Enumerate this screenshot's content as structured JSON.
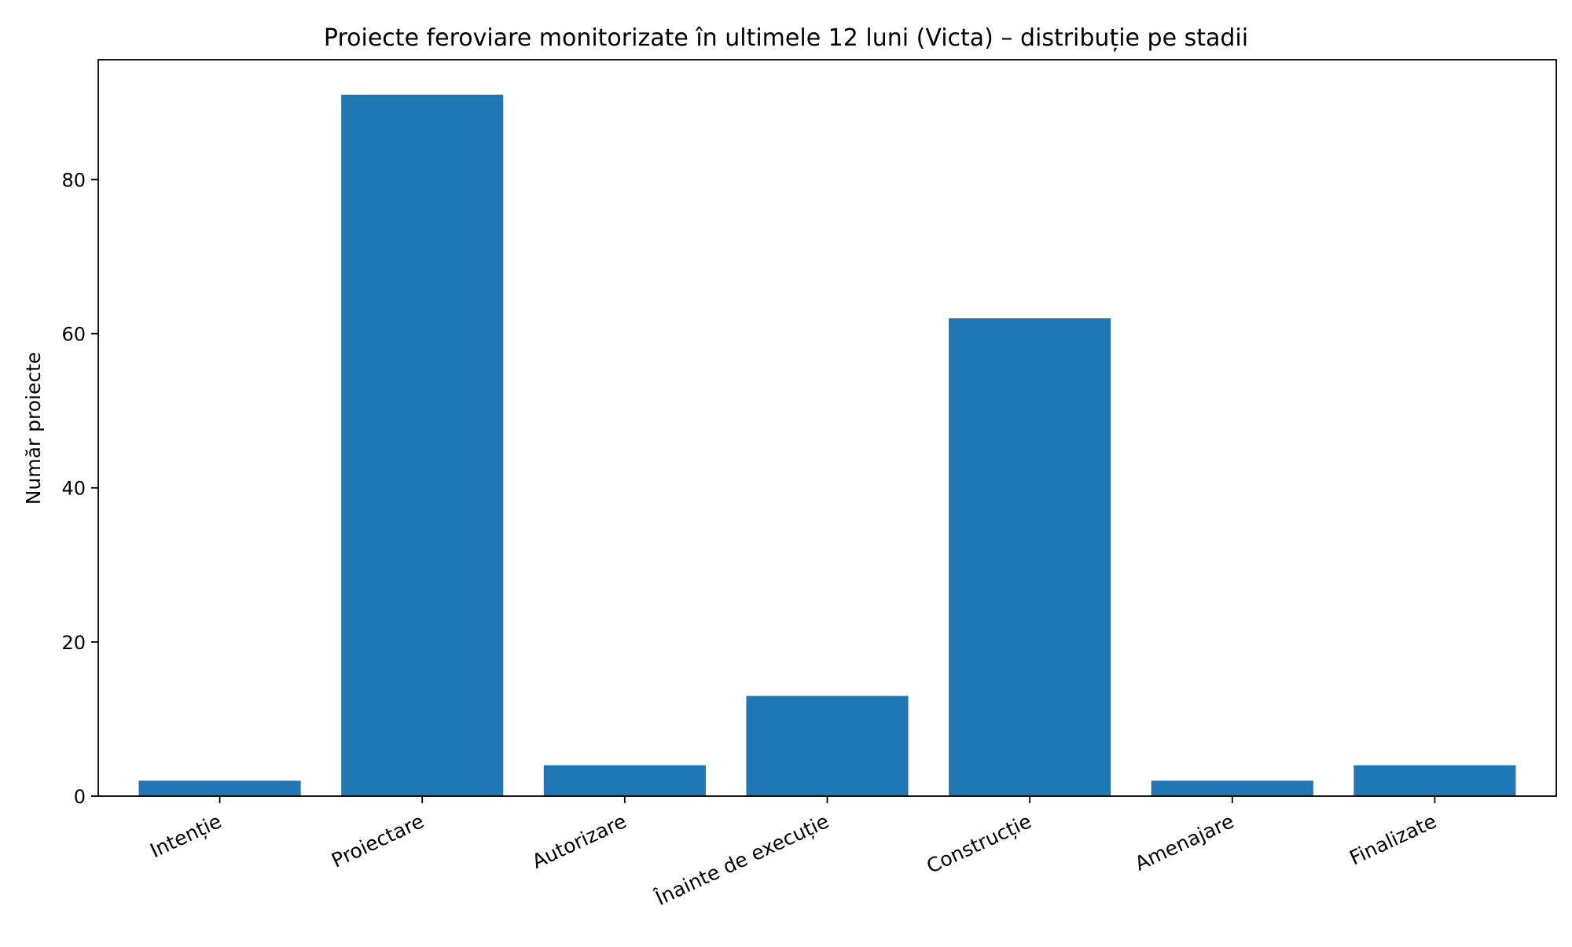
{
  "chart_data": {
    "type": "bar",
    "title": "Proiecte feroviare monitorizate în ultimele 12 luni (Victa) – distribuție pe stadii",
    "xlabel": "",
    "ylabel": "Număr proiecte",
    "categories": [
      "Intenție",
      "Proiectare",
      "Autorizare",
      "Înainte de execuție",
      "Construcție",
      "Amenajare",
      "Finalizate"
    ],
    "values": [
      2,
      91,
      4,
      13,
      62,
      2,
      4
    ],
    "ylim": [
      0,
      95.55
    ],
    "yticks": [
      0,
      20,
      40,
      60,
      80
    ],
    "grid": false,
    "bar_color": "#1f77b4"
  }
}
